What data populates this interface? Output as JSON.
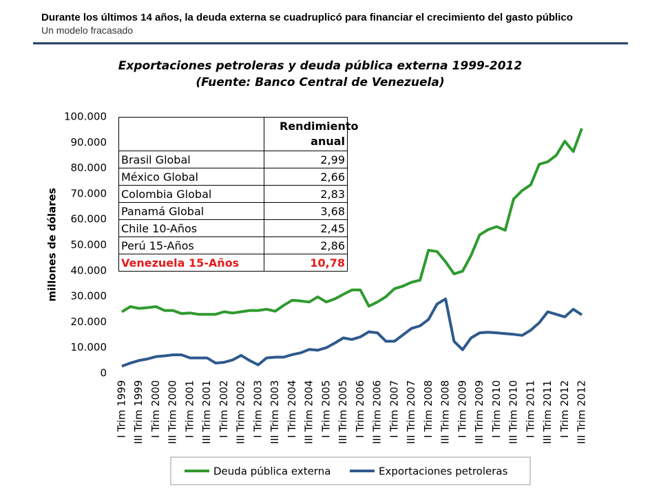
{
  "header": {
    "title": "Durante los últimos 14 años, la deuda externa se cuadruplicó para financiar el crecimiento del gasto público",
    "subtitle": "Un modelo fracasado"
  },
  "chart_data": {
    "type": "line",
    "title": "Exportaciones petroleras y deuda pública externa 1999-2012",
    "subtitle": "(Fuente: Banco Central de Venezuela)",
    "y_label": "millones de dólares",
    "categories": [
      "I Trim 1999",
      null,
      "III Trim 1999",
      null,
      "I Trim 2000",
      null,
      "III Trim 2000",
      null,
      "I Trim 2001",
      null,
      "III Trim 2001",
      null,
      "I Trim 2002",
      null,
      "III Trim 2002",
      null,
      "I Trim 2003",
      null,
      "III Trim 2003",
      null,
      "I Trim 2004",
      null,
      "III Trim 2004",
      null,
      "I Trim 2005",
      null,
      "III Trim 2005",
      null,
      "I Trim 2006",
      null,
      "III Trim 2006",
      null,
      "I Trim 2007",
      null,
      "III Trim 2007",
      null,
      "I Trim 2008",
      null,
      "III Trim 2008",
      null,
      "I Trim 2009",
      null,
      "III Trim 2009",
      null,
      "I Trim 2010",
      null,
      "III Trim 2010",
      null,
      "I Trim 2011",
      null,
      "III Trim 2011",
      null,
      "I Trim 2012",
      null,
      "III Trim 2012"
    ],
    "series": [
      {
        "name": "Deuda pública externa",
        "color": "#2f9a2f",
        "values": [
          24000,
          26000,
          25300,
          25600,
          26000,
          24500,
          24500,
          23300,
          23500,
          23000,
          23000,
          23000,
          24000,
          23500,
          24000,
          24500,
          24500,
          25000,
          24200,
          26500,
          28500,
          28200,
          27800,
          29800,
          27800,
          29000,
          30800,
          32500,
          32500,
          26200,
          27800,
          29900,
          33000,
          34000,
          35500,
          36300,
          48000,
          47500,
          43500,
          38800,
          39800,
          46000,
          54000,
          56000,
          57200,
          55800,
          68000,
          71300,
          73500,
          81500,
          82500,
          85000,
          90500,
          86500,
          95500
        ]
      },
      {
        "name": "Exportaciones petroleras",
        "color": "#2e5a8c",
        "values": [
          2800,
          4000,
          5000,
          5600,
          6500,
          6800,
          7200,
          7200,
          6000,
          6000,
          6000,
          4000,
          4300,
          5200,
          7000,
          5000,
          3300,
          6000,
          6300,
          6300,
          7300,
          8000,
          9300,
          9000,
          10000,
          11800,
          13800,
          13200,
          14200,
          16200,
          15800,
          12500,
          12500,
          15000,
          17500,
          18500,
          21000,
          27000,
          29000,
          12500,
          9200,
          13800,
          15800,
          16000,
          15800,
          15500,
          15200,
          14800,
          16800,
          19700,
          24000,
          23000,
          22000,
          25000,
          22800
        ]
      }
    ],
    "ylim": [
      0,
      100000
    ],
    "yticks": [
      0,
      {
        "value": 10000,
        "label": "10.000"
      },
      {
        "value": 20000,
        "label": "20.000"
      },
      {
        "value": 30000,
        "label": "30.000"
      },
      {
        "value": 40000,
        "label": "40.000"
      },
      {
        "value": 50000,
        "label": "50.000"
      },
      {
        "value": 60000,
        "label": "60.000"
      },
      {
        "value": 70000,
        "label": "70.000"
      },
      {
        "value": 80000,
        "label": "80.000"
      },
      {
        "value": 90000,
        "label": "90.000"
      },
      {
        "value": 100000,
        "label": "100.000"
      }
    ],
    "legend": "bottom"
  },
  "table": {
    "header": "Rendimiento anual",
    "rows": [
      [
        "Brasil Global",
        "2,99"
      ],
      [
        "México Global",
        "2,66"
      ],
      [
        "Colombia Global",
        "2,83"
      ],
      [
        "Panamá Global",
        "3,68"
      ],
      [
        "Chile 10-Años",
        "2,45"
      ],
      [
        "Perú 15-Años",
        "2,86"
      ],
      [
        "Venezuela 15-Años",
        "10,78"
      ]
    ]
  }
}
